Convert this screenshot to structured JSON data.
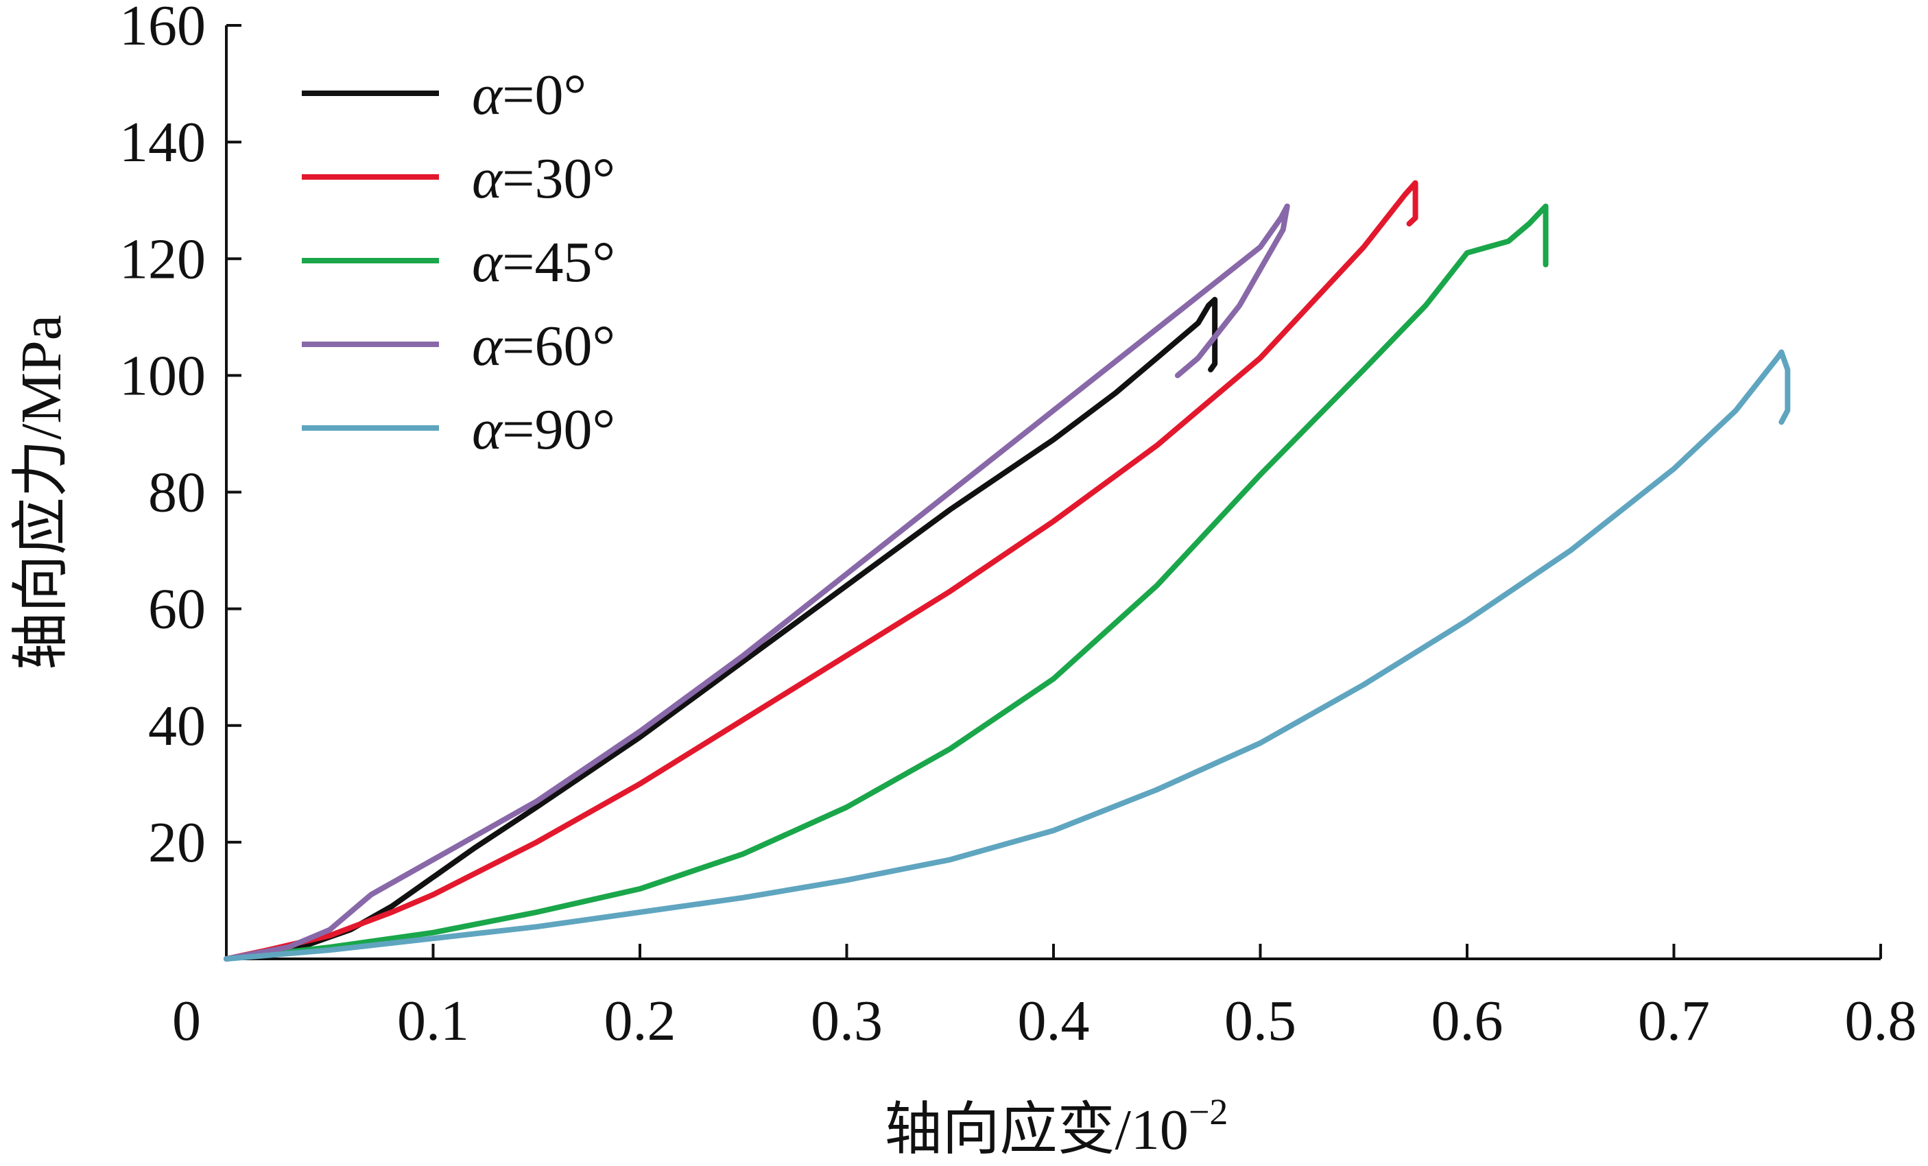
{
  "chart_data": {
    "type": "line",
    "title": "",
    "xlabel": "轴向应变/10",
    "xlabel_exponent": "−2",
    "ylabel": "轴向应力/MPa",
    "xlim": [
      0,
      0.8
    ],
    "ylim": [
      0,
      160
    ],
    "x_ticks": [
      "0",
      "0.1",
      "0.2",
      "0.3",
      "0.4",
      "0.5",
      "0.6",
      "0.7",
      "0.8"
    ],
    "y_ticks": [
      "20",
      "40",
      "60",
      "80",
      "100",
      "120",
      "140",
      "160"
    ],
    "y_tick_values": [
      20,
      40,
      60,
      80,
      100,
      120,
      140,
      160
    ],
    "x_tick_values": [
      0,
      0.1,
      0.2,
      0.3,
      0.4,
      0.5,
      0.6,
      0.7,
      0.8
    ],
    "grid": false,
    "legend_position": "top-left",
    "series": [
      {
        "name": "α=0°",
        "label_symbol": "α",
        "label_rest": "=0°",
        "color": "#111111",
        "points": [
          [
            0,
            0
          ],
          [
            0.02,
            1
          ],
          [
            0.04,
            2.5
          ],
          [
            0.06,
            5
          ],
          [
            0.08,
            9
          ],
          [
            0.1,
            14
          ],
          [
            0.12,
            19
          ],
          [
            0.15,
            26
          ],
          [
            0.2,
            38
          ],
          [
            0.25,
            51
          ],
          [
            0.3,
            64
          ],
          [
            0.35,
            77
          ],
          [
            0.4,
            89
          ],
          [
            0.43,
            97
          ],
          [
            0.45,
            103
          ],
          [
            0.47,
            109
          ],
          [
            0.475,
            112
          ],
          [
            0.478,
            113
          ],
          [
            0.478,
            102
          ],
          [
            0.476,
            101
          ]
        ]
      },
      {
        "name": "α=30°",
        "label_symbol": "α",
        "label_rest": "=30°",
        "color": "#e3182d",
        "points": [
          [
            0,
            0
          ],
          [
            0.02,
            1.5
          ],
          [
            0.05,
            4
          ],
          [
            0.08,
            8
          ],
          [
            0.1,
            11
          ],
          [
            0.15,
            20
          ],
          [
            0.2,
            30
          ],
          [
            0.25,
            41
          ],
          [
            0.3,
            52
          ],
          [
            0.35,
            63
          ],
          [
            0.4,
            75
          ],
          [
            0.45,
            88
          ],
          [
            0.5,
            103
          ],
          [
            0.55,
            122
          ],
          [
            0.57,
            131
          ],
          [
            0.575,
            133
          ],
          [
            0.575,
            127
          ],
          [
            0.572,
            126
          ]
        ]
      },
      {
        "name": "α=45°",
        "label_symbol": "α",
        "label_rest": "=45°",
        "color": "#1aa64a",
        "points": [
          [
            0,
            0
          ],
          [
            0.05,
            2
          ],
          [
            0.1,
            4.5
          ],
          [
            0.15,
            8
          ],
          [
            0.2,
            12
          ],
          [
            0.25,
            18
          ],
          [
            0.3,
            26
          ],
          [
            0.35,
            36
          ],
          [
            0.4,
            48
          ],
          [
            0.45,
            64
          ],
          [
            0.5,
            83
          ],
          [
            0.55,
            101
          ],
          [
            0.58,
            112
          ],
          [
            0.6,
            121
          ],
          [
            0.62,
            123
          ],
          [
            0.63,
            126
          ],
          [
            0.638,
            129
          ],
          [
            0.638,
            119
          ]
        ]
      },
      {
        "name": "α=60°",
        "label_symbol": "α",
        "label_rest": "=60°",
        "color": "#8868a8",
        "points": [
          [
            0,
            0
          ],
          [
            0.03,
            2
          ],
          [
            0.05,
            5
          ],
          [
            0.07,
            11
          ],
          [
            0.1,
            17
          ],
          [
            0.15,
            27
          ],
          [
            0.2,
            39
          ],
          [
            0.25,
            52
          ],
          [
            0.3,
            66
          ],
          [
            0.35,
            80
          ],
          [
            0.4,
            94
          ],
          [
            0.45,
            108
          ],
          [
            0.5,
            122
          ],
          [
            0.51,
            127
          ],
          [
            0.513,
            129
          ],
          [
            0.511,
            125
          ],
          [
            0.49,
            112
          ],
          [
            0.47,
            103
          ],
          [
            0.46,
            100
          ]
        ]
      },
      {
        "name": "α=90°",
        "label_symbol": "α",
        "label_rest": "=90°",
        "color": "#5fa5c0",
        "points": [
          [
            0,
            0
          ],
          [
            0.05,
            1.5
          ],
          [
            0.1,
            3.5
          ],
          [
            0.15,
            5.5
          ],
          [
            0.2,
            8
          ],
          [
            0.25,
            10.5
          ],
          [
            0.3,
            13.5
          ],
          [
            0.35,
            17
          ],
          [
            0.4,
            22
          ],
          [
            0.45,
            29
          ],
          [
            0.5,
            37
          ],
          [
            0.55,
            47
          ],
          [
            0.6,
            58
          ],
          [
            0.65,
            70
          ],
          [
            0.7,
            84
          ],
          [
            0.73,
            94
          ],
          [
            0.75,
            103
          ],
          [
            0.752,
            104
          ],
          [
            0.755,
            101
          ],
          [
            0.755,
            94
          ],
          [
            0.752,
            92
          ]
        ]
      }
    ]
  }
}
